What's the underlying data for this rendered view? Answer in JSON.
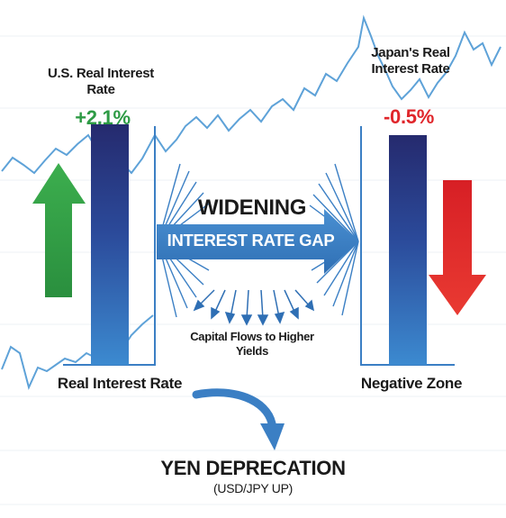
{
  "us": {
    "label": "U.S. Real Interest Rate",
    "value": "+2.1%"
  },
  "japan": {
    "label": "Japan's Real Interest Rate",
    "value": "-0.5%"
  },
  "widening": {
    "title": "WIDENING",
    "banner": "INTEREST RATE GAP"
  },
  "flows": {
    "label": "Capital Flows to Higher Yields"
  },
  "bases": {
    "left": "Real Interest Rate",
    "right": "Negative Zone"
  },
  "outcome": {
    "title": "YEN DEPRECATION",
    "subtitle": "(USD/JPY UP)"
  },
  "colors": {
    "up_arrow": "#2e9b45",
    "down_arrow": "#e0262b",
    "bar_top": "#252a6e",
    "bar_bottom": "#3c8ad0",
    "banner": "#3b7fc4",
    "line": "#5ea2d8"
  },
  "icons": {
    "up": "up-arrow-icon",
    "down": "down-arrow-icon",
    "curve": "curved-arrow-icon"
  }
}
